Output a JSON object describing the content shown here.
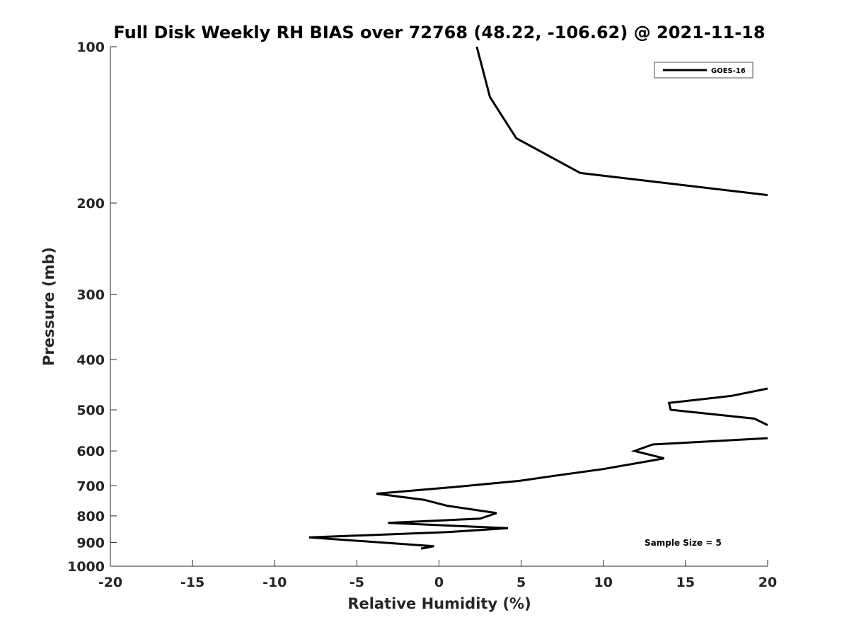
{
  "chart_data": {
    "type": "line",
    "title": "Full Disk Weekly RH BIAS over 72768 (48.22, -106.62) @ 2021-11-18",
    "xlabel": "Relative Humidity (%)",
    "ylabel": "Pressure (mb)",
    "xlim": [
      -20,
      20
    ],
    "ylim": [
      100,
      1000
    ],
    "y_scale": "log",
    "y_reversed": true,
    "grid": false,
    "legend_position": "top-right",
    "x_ticks": [
      "-20",
      "-15",
      "-10",
      "-5",
      "0",
      "5",
      "10",
      "15",
      "20"
    ],
    "y_ticks": [
      "100",
      "200",
      "300",
      "400",
      "500",
      "600",
      "700",
      "800",
      "900",
      "1000"
    ],
    "annotation": "Sample Size = 5",
    "series": [
      {
        "name": "GOES-16",
        "color": "#000000",
        "segments": [
          [
            {
              "x": 2.3,
              "p": 100
            },
            {
              "x": 3.1,
              "p": 125
            },
            {
              "x": 4.7,
              "p": 150
            },
            {
              "x": 8.6,
              "p": 175
            },
            {
              "x": 20.0,
              "p": 193
            }
          ],
          [
            {
              "x": 20.0,
              "p": 455
            },
            {
              "x": 17.8,
              "p": 470
            },
            {
              "x": 14.0,
              "p": 485
            },
            {
              "x": 14.1,
              "p": 500
            },
            {
              "x": 19.2,
              "p": 520
            },
            {
              "x": 20.0,
              "p": 535
            }
          ],
          [
            {
              "x": 20.0,
              "p": 567
            },
            {
              "x": 13.0,
              "p": 583
            },
            {
              "x": 11.9,
              "p": 600
            },
            {
              "x": 13.7,
              "p": 620
            },
            {
              "x": 10.0,
              "p": 650
            },
            {
              "x": 7.0,
              "p": 670
            },
            {
              "x": 4.9,
              "p": 685
            },
            {
              "x": 0.7,
              "p": 705
            },
            {
              "x": -3.8,
              "p": 725
            },
            {
              "x": -0.9,
              "p": 745
            },
            {
              "x": 0.5,
              "p": 765
            },
            {
              "x": 3.5,
              "p": 790
            },
            {
              "x": 2.5,
              "p": 810
            },
            {
              "x": -3.1,
              "p": 825
            },
            {
              "x": 4.2,
              "p": 845
            },
            {
              "x": 0.4,
              "p": 860
            },
            {
              "x": -7.9,
              "p": 880
            },
            {
              "x": -0.3,
              "p": 915
            },
            {
              "x": -1.1,
              "p": 925
            }
          ]
        ]
      }
    ]
  }
}
